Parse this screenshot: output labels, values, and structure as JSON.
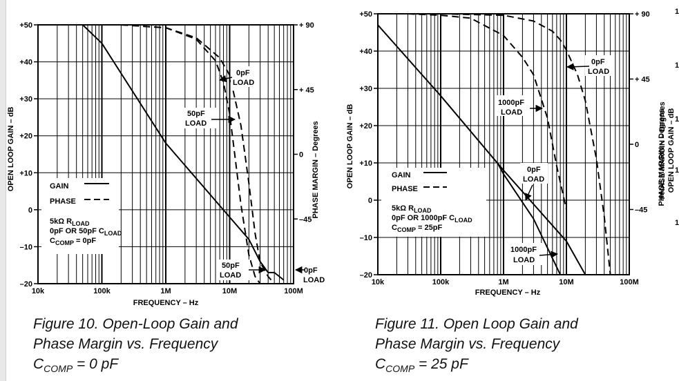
{
  "chart_data": [
    {
      "type": "line",
      "title": "Figure 10. Open-Loop Gain and Phase Margin vs. Frequency",
      "caption_lines": [
        "Figure 10.  Open-Loop Gain and",
        "Phase Margin vs. Frequency"
      ],
      "caption_ccomp": {
        "sym": "C",
        "sub": "COMP",
        "value": " = 0 pF"
      },
      "xlabel": "FREQUENCY – Hz",
      "ylabel": "OPEN LOOP GAIN – dB",
      "y2label": "PHASE MARGIN – Degrees",
      "xscale": "log",
      "xlim": [
        10000,
        100000000
      ],
      "ylim": [
        -20,
        50
      ],
      "y2lim": [
        -90,
        90
      ],
      "x_tick_labels": [
        "10k",
        "100k",
        "1M",
        "10M",
        "100M"
      ],
      "y_tick_labels": [
        "+50",
        "+40",
        "+30",
        "+20",
        "+10",
        "0",
        "–10",
        "–20"
      ],
      "y2_tick_labels": [
        "+ 90",
        "+ 45",
        "0",
        "–45"
      ],
      "series": [
        {
          "name": "GAIN",
          "axis": "left",
          "style": "solid",
          "x": [
            50000,
            100000,
            1000000,
            10000000,
            20000000,
            30000000,
            40000000,
            50000000,
            70000000
          ],
          "y": [
            50,
            45,
            18,
            -2,
            -8,
            -14,
            -17,
            -17,
            -19
          ]
        },
        {
          "name": "PHASE 0pF LOAD",
          "axis": "right",
          "style": "dashed",
          "x": [
            200000,
            1000000,
            3000000,
            7000000,
            10000000,
            15000000,
            20000000,
            25000000,
            30000000,
            40000000,
            50000000
          ],
          "y": [
            90,
            88,
            81,
            67,
            55,
            20,
            -20,
            -55,
            -75,
            -85,
            -90
          ]
        },
        {
          "name": "PHASE 50pF LOAD",
          "axis": "right",
          "style": "dashed",
          "x": [
            200000,
            1000000,
            3000000,
            6000000,
            8000000,
            10000000,
            12000000,
            15000000,
            20000000,
            25000000,
            30000000
          ],
          "y": [
            90,
            88,
            80,
            65,
            50,
            28,
            0,
            -35,
            -70,
            -85,
            -90
          ]
        }
      ],
      "legend": [
        {
          "label": "GAIN",
          "style": "solid"
        },
        {
          "label": "PHASE",
          "style": "dashed"
        }
      ],
      "conditions": [
        {
          "sym": "5kΩ R",
          "sub": "LOAD",
          "tail": ""
        },
        {
          "sym": "0pF OR 50pF C",
          "sub": "LOAD",
          "tail": ""
        },
        {
          "sym": "C",
          "sub": "COMP",
          "tail": " = 0pF"
        }
      ],
      "annotations": [
        {
          "lines": [
            "0pF",
            "LOAD"
          ]
        },
        {
          "lines": [
            "50pF",
            "LOAD"
          ]
        },
        {
          "lines": [
            "50pF",
            "LOAD"
          ]
        },
        {
          "lines": [
            "0pF",
            "LOAD"
          ]
        }
      ]
    },
    {
      "type": "line",
      "title": "Figure 11. Open Loop Gain and Phase Margin vs. Frequency",
      "caption_lines": [
        "Figure 11.  Open Loop Gain and",
        "Phase Margin vs. Frequency"
      ],
      "caption_ccomp": {
        "sym": "C",
        "sub": "COMP",
        "value": " = 25 pF"
      },
      "xlabel": "FREQUENCY – Hz",
      "ylabel": "OPEN LOOP GAIN – dB",
      "y2label": "PHASE MARGIN – Degrees",
      "xscale": "log",
      "xlim": [
        10000,
        100000000
      ],
      "ylim": [
        -20,
        50
      ],
      "y2lim": [
        -90,
        90
      ],
      "x_tick_labels": [
        "10k",
        "100k",
        "1M",
        "10M",
        "100M"
      ],
      "y_tick_labels": [
        "+50",
        "+40",
        "+30",
        "+20",
        "+10",
        "0",
        "–10",
        "–20"
      ],
      "y2_tick_labels": [
        "+ 90",
        "+ 45",
        "0",
        "–45"
      ],
      "series": [
        {
          "name": "GAIN 0pF LOAD",
          "axis": "left",
          "style": "solid",
          "x": [
            10000,
            100000,
            1000000,
            10000000,
            20000000
          ],
          "y": [
            47,
            28,
            8,
            -11,
            -20
          ]
        },
        {
          "name": "GAIN 1000pF LOAD",
          "axis": "left",
          "style": "solid",
          "x": [
            800000,
            1000000,
            3000000,
            8000000
          ],
          "y": [
            10,
            7,
            -5,
            -20
          ]
        },
        {
          "name": "PHASE 0pF LOAD",
          "axis": "right",
          "style": "dashed",
          "x": [
            100000,
            1000000,
            3000000,
            6000000,
            8000000,
            10000000,
            15000000,
            20000000,
            30000000,
            40000000,
            50000000
          ],
          "y": [
            90,
            89,
            85,
            78,
            72,
            65,
            48,
            30,
            -10,
            -50,
            -90
          ]
        },
        {
          "name": "PHASE 1000pF LOAD",
          "axis": "right",
          "style": "dashed",
          "x": [
            30000,
            100000,
            300000,
            1000000,
            2000000,
            3000000,
            5000000,
            7000000,
            10000000
          ],
          "y": [
            90,
            89,
            87,
            75,
            60,
            48,
            18,
            -15,
            -45
          ]
        }
      ],
      "legend": [
        {
          "label": "GAIN",
          "style": "solid"
        },
        {
          "label": "PHASE",
          "style": "dashed"
        }
      ],
      "conditions": [
        {
          "sym": "5kΩ R",
          "sub": "LOAD",
          "tail": ""
        },
        {
          "sym": "0pF OR 1000pF C",
          "sub": "LOAD",
          "tail": ""
        },
        {
          "sym": "C",
          "sub": "COMP",
          "tail": " = 25pF"
        }
      ],
      "annotations": [
        {
          "lines": [
            "0pF",
            "LOAD"
          ]
        },
        {
          "lines": [
            "1000pF",
            "LOAD"
          ]
        },
        {
          "lines": [
            "0pF",
            "LOAD"
          ]
        },
        {
          "lines": [
            "1000pF",
            "LOAD"
          ]
        }
      ]
    }
  ],
  "partial_figure": {
    "ylabel": "OPEN LOOP GAIN – dB",
    "y2label": "PHASE MARGIN – Degrees",
    "tick_fragments": [
      "1",
      "1",
      "1",
      "1",
      "1"
    ]
  }
}
